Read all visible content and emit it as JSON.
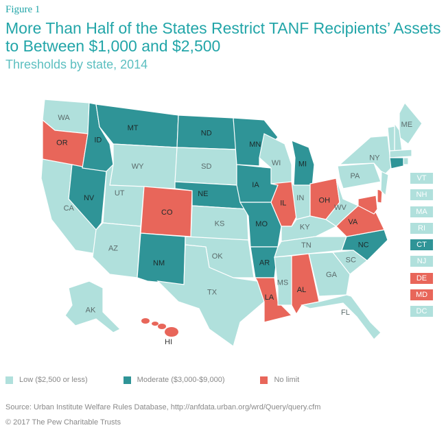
{
  "header": {
    "figure_label": "Figure 1",
    "title": "More Than Half of the States Restrict TANF Recipients’ Assets to Between $1,000 and $2,500",
    "subtitle": "Thresholds by state, 2014"
  },
  "colors": {
    "low": "#b0e0dc",
    "moderate": "#2f9497",
    "no_limit": "#e8665a",
    "title": "#22a5a8"
  },
  "legend": [
    {
      "key": "low",
      "label": "Low ($2,500 or less)"
    },
    {
      "key": "moderate",
      "label": "Moderate ($3,000-$9,000)"
    },
    {
      "key": "no_limit",
      "label": "No limit"
    }
  ],
  "states": {
    "WA": "low",
    "OR": "no_limit",
    "CA": "low",
    "NV": "moderate",
    "ID": "moderate",
    "MT": "moderate",
    "WY": "low",
    "UT": "low",
    "AZ": "low",
    "CO": "no_limit",
    "NM": "moderate",
    "ND": "moderate",
    "SD": "low",
    "NE": "moderate",
    "KS": "low",
    "OK": "low",
    "TX": "low",
    "MN": "moderate",
    "IA": "moderate",
    "MO": "moderate",
    "AR": "moderate",
    "LA": "no_limit",
    "WI": "low",
    "IL": "no_limit",
    "MI": "moderate",
    "IN": "low",
    "OH": "no_limit",
    "KY": "low",
    "TN": "low",
    "MS": "low",
    "AL": "no_limit",
    "GA": "low",
    "FL": "low",
    "SC": "low",
    "NC": "moderate",
    "VA": "no_limit",
    "WV": "low",
    "PA": "low",
    "NY": "low",
    "MD": "no_limit",
    "DE": "no_limit",
    "NJ": "low",
    "CT": "moderate",
    "RI": "low",
    "MA": "low",
    "VT": "low",
    "NH": "low",
    "ME": "low",
    "AK": "low",
    "HI": "no_limit",
    "DC": "low"
  },
  "small_states": [
    {
      "abbr": "VT",
      "category": "low"
    },
    {
      "abbr": "NH",
      "category": "low"
    },
    {
      "abbr": "MA",
      "category": "low"
    },
    {
      "abbr": "RI",
      "category": "low"
    },
    {
      "abbr": "CT",
      "category": "moderate"
    },
    {
      "abbr": "NJ",
      "category": "low"
    },
    {
      "abbr": "DE",
      "category": "no_limit"
    },
    {
      "abbr": "MD",
      "category": "no_limit"
    },
    {
      "abbr": "DC",
      "category": "low"
    }
  ],
  "footer": {
    "source": "Source: Urban Institute Welfare Rules Database, http://anfdata.urban.org/wrd/Query/query.cfm",
    "copyright": "© 2017 The Pew Charitable Trusts"
  }
}
